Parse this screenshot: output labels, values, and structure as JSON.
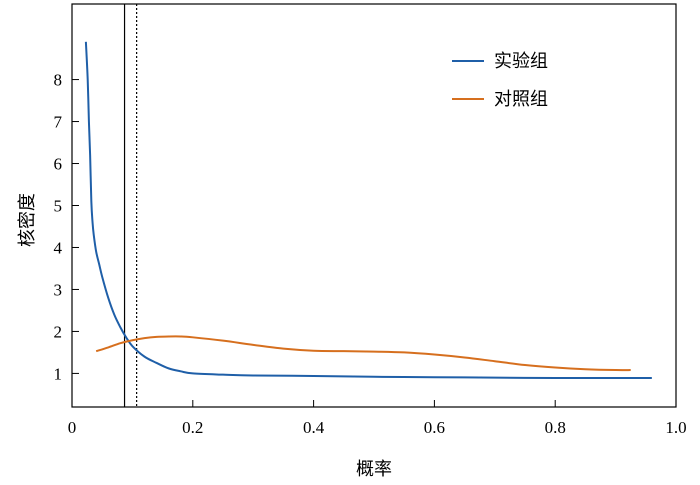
{
  "chart_data": {
    "type": "line",
    "xlabel": "概率",
    "ylabel": "核密度",
    "xlim": [
      0,
      1.0
    ],
    "ylim": [
      0.2,
      9.8
    ],
    "x_ticks": [
      {
        "value": 0,
        "label": "0"
      },
      {
        "value": 0.2,
        "label": "0.2"
      },
      {
        "value": 0.4,
        "label": "0.4"
      },
      {
        "value": 0.6,
        "label": "0.6"
      },
      {
        "value": 0.8,
        "label": "0.8"
      },
      {
        "value": 1.0,
        "label": "1.0"
      }
    ],
    "y_ticks": [
      {
        "value": 1,
        "label": "1"
      },
      {
        "value": 2,
        "label": "2"
      },
      {
        "value": 3,
        "label": "3"
      },
      {
        "value": 4,
        "label": "4"
      },
      {
        "value": 5,
        "label": "5"
      },
      {
        "value": 6,
        "label": "6"
      },
      {
        "value": 7,
        "label": "7"
      },
      {
        "value": 8,
        "label": "8"
      }
    ],
    "grid": false,
    "legend_position": "top-right",
    "series": [
      {
        "name": "实验组",
        "color": "#1f5fa8",
        "x": [
          0.023,
          0.026,
          0.028,
          0.03,
          0.032,
          0.034,
          0.036,
          0.04,
          0.045,
          0.05,
          0.06,
          0.07,
          0.08,
          0.09,
          0.1,
          0.12,
          0.14,
          0.16,
          0.18,
          0.2,
          0.25,
          0.3,
          0.4,
          0.5,
          0.6,
          0.7,
          0.8,
          0.9,
          0.96
        ],
        "y": [
          8.9,
          8.0,
          7.0,
          6.2,
          5.1,
          4.6,
          4.3,
          3.9,
          3.6,
          3.3,
          2.8,
          2.4,
          2.1,
          1.85,
          1.65,
          1.4,
          1.25,
          1.12,
          1.05,
          1.0,
          0.97,
          0.95,
          0.94,
          0.92,
          0.91,
          0.9,
          0.89,
          0.89,
          0.89
        ]
      },
      {
        "name": "对照组",
        "color": "#d66f1e",
        "x": [
          0.04,
          0.06,
          0.08,
          0.1,
          0.12,
          0.14,
          0.16,
          0.18,
          0.2,
          0.25,
          0.3,
          0.35,
          0.4,
          0.45,
          0.5,
          0.55,
          0.6,
          0.65,
          0.7,
          0.75,
          0.8,
          0.85,
          0.9,
          0.925
        ],
        "y": [
          1.53,
          1.62,
          1.72,
          1.79,
          1.84,
          1.87,
          1.88,
          1.88,
          1.86,
          1.78,
          1.68,
          1.59,
          1.54,
          1.53,
          1.52,
          1.5,
          1.45,
          1.38,
          1.29,
          1.2,
          1.14,
          1.1,
          1.08,
          1.08
        ]
      }
    ],
    "vertical_lines": [
      {
        "x": 0.087,
        "style": "solid",
        "color": "#000000"
      },
      {
        "x": 0.107,
        "style": "dotted",
        "color": "#000000"
      }
    ]
  }
}
